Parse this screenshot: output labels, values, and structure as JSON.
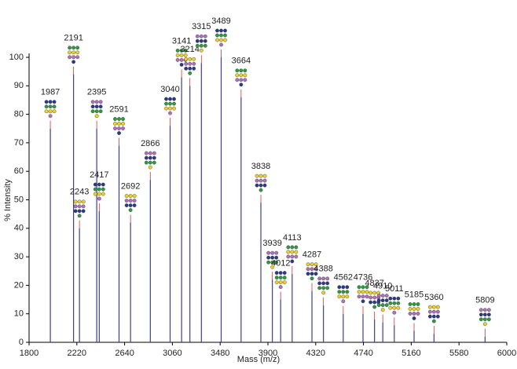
{
  "chart_data": {
    "type": "spectrum",
    "x_label": "Mass (m/z)",
    "y_label": "% Intensity",
    "x": [
      1987,
      2191,
      2243,
      2395,
      2417,
      2591,
      2692,
      2866,
      3040,
      3141,
      3214,
      3315,
      3489,
      3664,
      3838,
      3939,
      4012,
      4113,
      4287,
      4388,
      4562,
      4736,
      4837,
      4910,
      5011,
      5185,
      5360,
      5809
    ],
    "values": [
      75,
      94,
      40,
      75,
      46,
      69,
      42,
      57,
      76,
      93,
      90,
      98,
      100,
      86,
      49,
      22,
      15,
      24,
      18,
      13,
      10,
      10,
      8,
      7,
      6,
      4,
      3,
      2
    ],
    "color": "#3d3d8f",
    "label_line_color": "#e03030",
    "xlim": [
      1800,
      6000
    ],
    "xticks": [
      1800,
      2220,
      2640,
      3060,
      3480,
      3900,
      4320,
      4740,
      5160,
      5580,
      6000
    ],
    "ylim": [
      0,
      100
    ],
    "yticks": [
      0,
      10,
      20,
      30,
      40,
      50,
      60,
      70,
      80,
      90,
      100
    ]
  }
}
